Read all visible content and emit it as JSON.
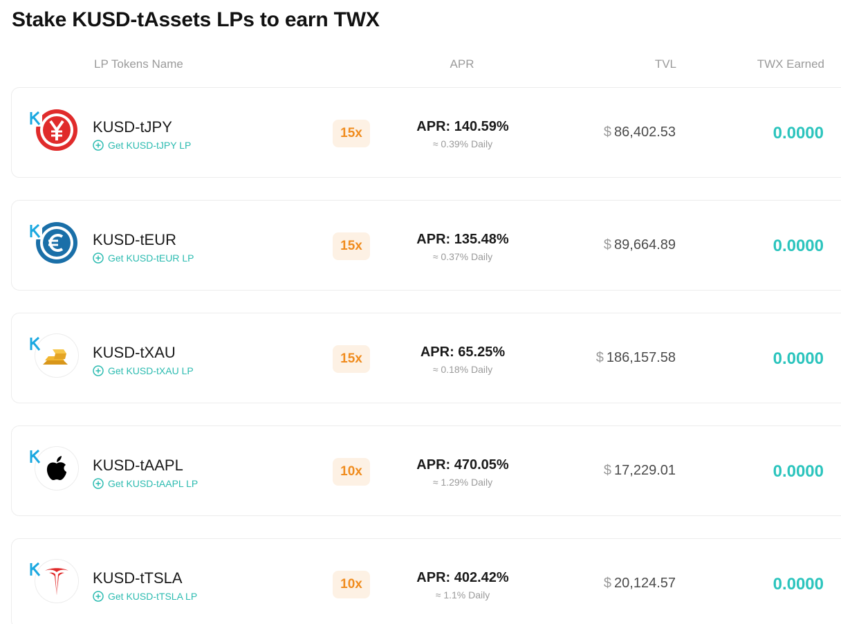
{
  "title": "Stake KUSD-tAssets LPs to earn TWX",
  "columns": {
    "name": "LP Tokens Name",
    "apr": "APR",
    "tvl": "TVL",
    "earned": "TWX Earned"
  },
  "colors": {
    "accent_teal": "#2bc4bd",
    "multiplier_text": "#f08c1e",
    "multiplier_bg": "#fdf1e4",
    "k_logo": "#1aa8e0"
  },
  "rows": [
    {
      "icon": "yen-icon",
      "name": "KUSD-tJPY",
      "get_label": "Get KUSD-tJPY LP",
      "multiplier": "15x",
      "apr": "APR: 140.59%",
      "daily": "≈ 0.39% Daily",
      "tvl_currency": "$",
      "tvl": "86,402.53",
      "earned": "0.0000"
    },
    {
      "icon": "euro-icon",
      "name": "KUSD-tEUR",
      "get_label": "Get KUSD-tEUR LP",
      "multiplier": "15x",
      "apr": "APR: 135.48%",
      "daily": "≈ 0.37% Daily",
      "tvl_currency": "$",
      "tvl": "89,664.89",
      "earned": "0.0000"
    },
    {
      "icon": "gold-bars-icon",
      "name": "KUSD-tXAU",
      "get_label": "Get KUSD-tXAU LP",
      "multiplier": "15x",
      "apr": "APR: 65.25%",
      "daily": "≈ 0.18% Daily",
      "tvl_currency": "$",
      "tvl": "186,157.58",
      "earned": "0.0000"
    },
    {
      "icon": "apple-icon",
      "name": "KUSD-tAAPL",
      "get_label": "Get KUSD-tAAPL LP",
      "multiplier": "10x",
      "apr": "APR: 470.05%",
      "daily": "≈ 1.29% Daily",
      "tvl_currency": "$",
      "tvl": "17,229.01",
      "earned": "0.0000"
    },
    {
      "icon": "tesla-icon",
      "name": "KUSD-tTSLA",
      "get_label": "Get KUSD-tTSLA LP",
      "multiplier": "10x",
      "apr": "APR: 402.42%",
      "daily": "≈ 1.1% Daily",
      "tvl_currency": "$",
      "tvl": "20,124.57",
      "earned": "0.0000"
    }
  ]
}
